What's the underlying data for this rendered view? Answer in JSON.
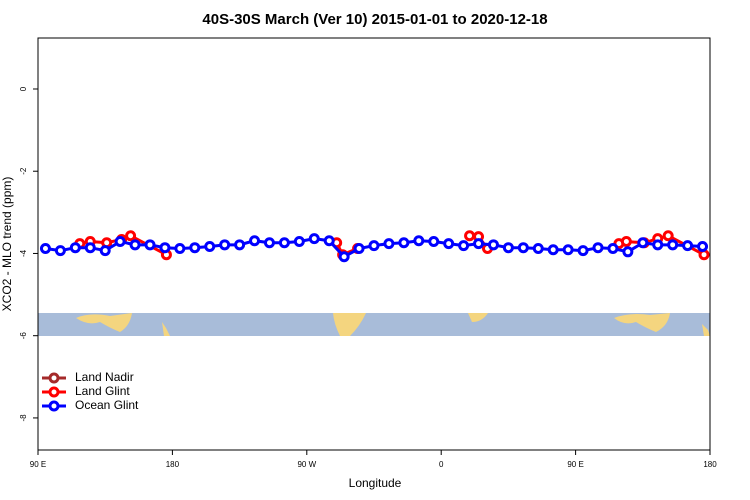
{
  "chart_data": {
    "type": "line",
    "title": "40S-30S March (Ver 10)   2015-01-01 to 2020-12-18",
    "x_label": "Longitude",
    "y_label": "XCO2 - MLO trend (ppm)",
    "xlim": [
      90,
      540
    ],
    "ylim": [
      -8.78,
      1.24
    ],
    "xticks": [
      {
        "value": 90,
        "label": "90 E"
      },
      180,
      {
        "value": 270,
        "label": "90 W"
      },
      {
        "value": 360,
        "label": "0"
      },
      {
        "value": 450,
        "label": "90 E"
      },
      {
        "value": 540,
        "label": "180"
      }
    ],
    "yticks": [
      0,
      -2,
      -4,
      -6,
      -8
    ],
    "legend": "bottomleft",
    "series": [
      {
        "name": "Land Nadir",
        "color": "#a52a2a",
        "x": [],
        "values": []
      },
      {
        "name": "Land Glint",
        "color": "#ff0000",
        "x": [
          118,
          125,
          136,
          146,
          152,
          176,
          233,
          290,
          294,
          304,
          340,
          379,
          385,
          391,
          435,
          479,
          484,
          496,
          505,
          512,
          536
        ],
        "values": [
          -3.76,
          -3.71,
          -3.74,
          -3.66,
          -3.57,
          -4.03,
          null,
          -3.74,
          -4.03,
          -3.88,
          null,
          -3.57,
          -3.59,
          -3.88,
          null,
          -3.76,
          -3.71,
          -3.74,
          -3.64,
          -3.57,
          -4.03
        ]
      },
      {
        "name": "Ocean Glint",
        "color": "#0000ff",
        "x": [
          95,
          105,
          115,
          125,
          135,
          145,
          155,
          165,
          175,
          185,
          195,
          205,
          215,
          225,
          235,
          245,
          255,
          265,
          275,
          285,
          295,
          305,
          315,
          325,
          335,
          345,
          355,
          365,
          375,
          385,
          395,
          405,
          415,
          425,
          435,
          445,
          455,
          465,
          475,
          485,
          495,
          505,
          515,
          525,
          535
        ],
        "values": [
          -3.88,
          -3.93,
          -3.86,
          -3.86,
          -3.93,
          -3.71,
          -3.79,
          -3.79,
          -3.86,
          -3.88,
          -3.86,
          -3.83,
          -3.79,
          -3.79,
          -3.69,
          -3.74,
          -3.74,
          -3.71,
          -3.64,
          -3.69,
          -4.08,
          -3.88,
          -3.81,
          -3.76,
          -3.74,
          -3.69,
          -3.71,
          -3.76,
          -3.81,
          -3.76,
          -3.79,
          -3.86,
          -3.86,
          -3.88,
          -3.91,
          -3.91,
          -3.93,
          -3.86,
          -3.88,
          -3.96,
          -3.74,
          -3.79,
          -3.79,
          -3.81,
          -3.83
        ]
      }
    ]
  }
}
